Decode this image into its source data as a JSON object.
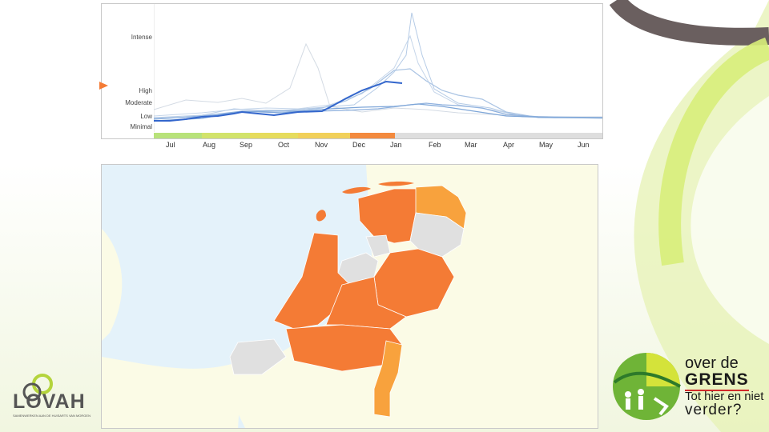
{
  "chart": {
    "y_levels": [
      "Intense",
      "High",
      "Moderate",
      "Low",
      "Minimal"
    ],
    "months": [
      "Jul",
      "Aug",
      "Sep",
      "Oct",
      "Nov",
      "Dec",
      "Jan",
      "Feb",
      "Mar",
      "Apr",
      "May",
      "Jun"
    ],
    "current_level_marker": "High"
  },
  "map": {
    "region": "Netherlands",
    "colors": {
      "high": "#f47b35",
      "moderate": "#f8a23d",
      "no_data": "#e0e0e0"
    }
  },
  "logos": {
    "lovah": {
      "name": "LOVAH",
      "tagline": "SAMENWERKEN AAN DE HUISARTS VAN MORGEN"
    },
    "over_de_grens": {
      "line1": "over de",
      "line2": "GRENS",
      "line3": "Tot hier en niet",
      "line4": "verder?"
    }
  },
  "colors": {
    "brand_green": "#c6e25a",
    "brand_gray": "#6a5f5f",
    "trend_line": "#3366cc",
    "scale_high": "#f47b35"
  }
}
